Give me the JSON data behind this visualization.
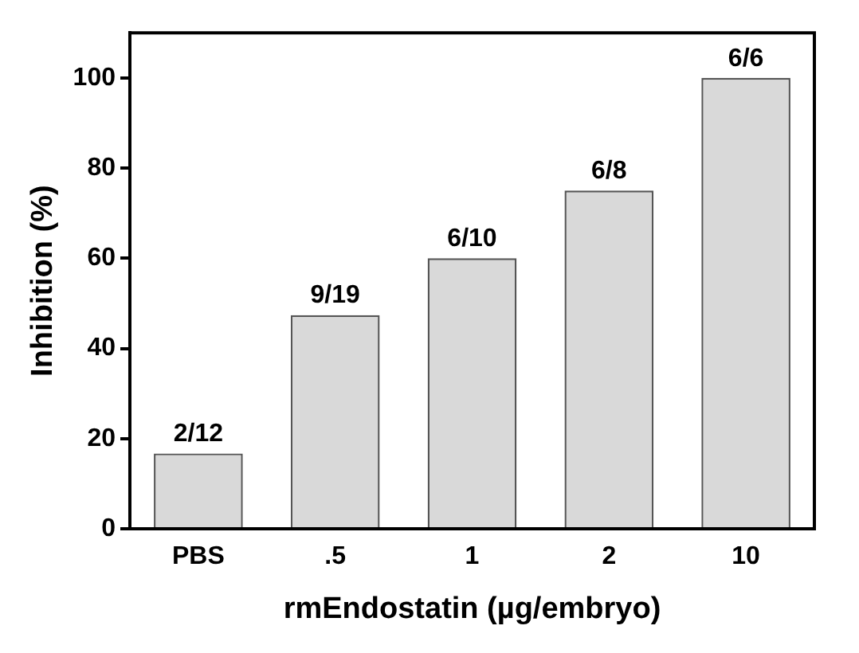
{
  "chart_data": {
    "type": "bar",
    "xlabel": "rmEndostatin (µg/embryo)",
    "ylabel": "Inhibition (%)",
    "categories": [
      "PBS",
      ".5",
      "1",
      "2",
      "10"
    ],
    "values": [
      16.7,
      47.4,
      60,
      75,
      100
    ],
    "annotations": [
      {
        "text": "2/12",
        "x": "PBS",
        "y": 16.7
      },
      {
        "text": "9/19",
        "x": ".5",
        "y": 47.4
      },
      {
        "text": "6/10",
        "x": "1",
        "y": 60
      },
      {
        "text": "6/8",
        "x": "2",
        "y": 75
      },
      {
        "text": "6/6",
        "x": "10",
        "y": 100
      }
    ],
    "color": "#d9d9d9",
    "ylim": [
      0,
      110
    ],
    "yticks": [
      0,
      20,
      40,
      60,
      80,
      100
    ],
    "grid": false,
    "legend": false
  }
}
